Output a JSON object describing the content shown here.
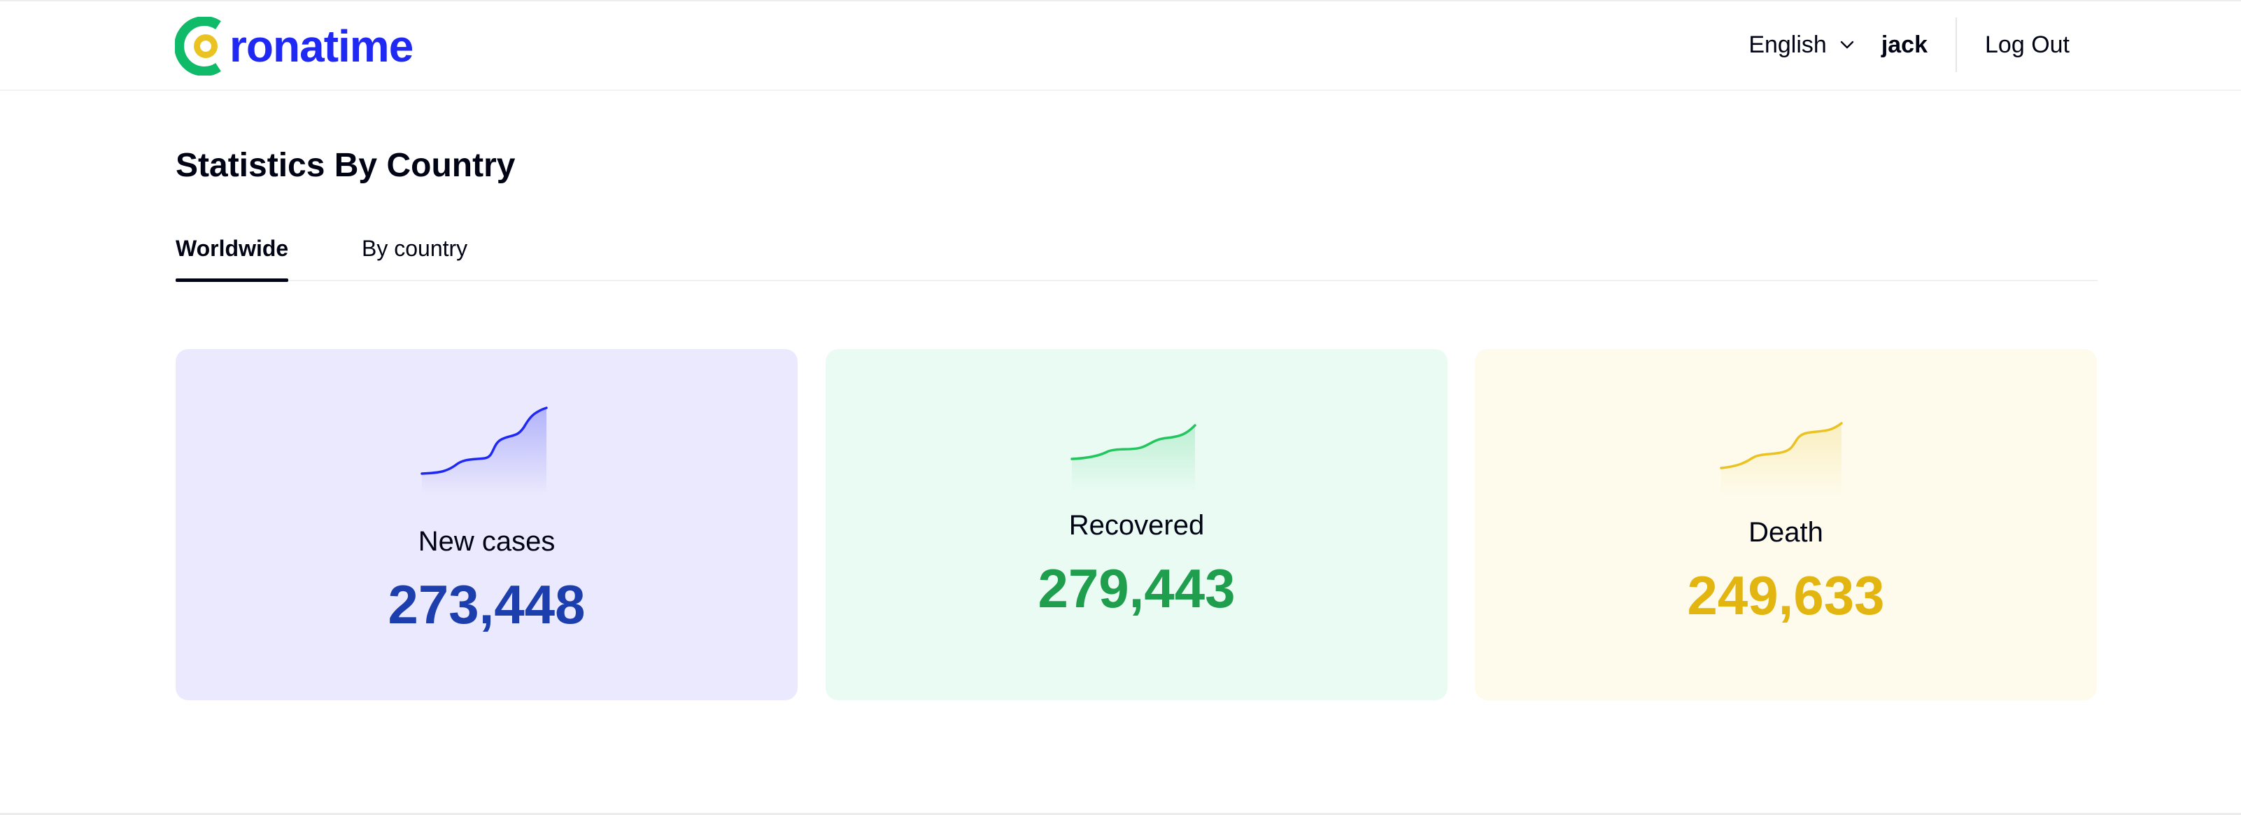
{
  "header": {
    "logo_text": "ronatime",
    "language": "English",
    "username": "jack",
    "logout_label": "Log Out"
  },
  "page": {
    "title": "Statistics By Country"
  },
  "tabs": [
    {
      "label": "Worldwide",
      "active": true
    },
    {
      "label": "By country",
      "active": false
    }
  ],
  "stats": [
    {
      "label": "New cases",
      "value": "273,448",
      "color": "#1d3fae",
      "background": "#ebe9fd",
      "line_color": "#2029f3",
      "icon": "trend-chart-icon"
    },
    {
      "label": "Recovered",
      "value": "279,443",
      "color": "#1f9e4e",
      "background": "#e9fbf3",
      "line_color": "#22c55e",
      "icon": "trend-chart-icon"
    },
    {
      "label": "Death",
      "value": "249,633",
      "color": "#e2b511",
      "background": "#fefbec",
      "line_color": "#eac322",
      "icon": "trend-chart-icon"
    }
  ],
  "colors": {
    "brand": "#2029f3",
    "logo_green": "#0fba68",
    "logo_yellow": "#eac322"
  }
}
